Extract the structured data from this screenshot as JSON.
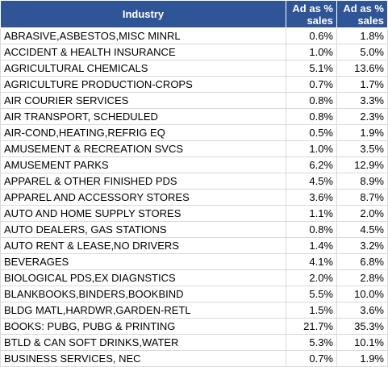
{
  "header": {
    "industry": "Industry",
    "col_a": "Ad as % sales",
    "col_b": "Ad as % sales"
  },
  "rows": [
    {
      "name": "ABRASIVE,ASBESTOS,MISC MINRL",
      "a": "0.6%",
      "b": "1.8%"
    },
    {
      "name": "ACCIDENT & HEALTH INSURANCE",
      "a": "1.0%",
      "b": "5.0%"
    },
    {
      "name": "AGRICULTURAL CHEMICALS",
      "a": "5.1%",
      "b": "13.6%"
    },
    {
      "name": "AGRICULTURE PRODUCTION-CROPS",
      "a": "0.7%",
      "b": "1.7%"
    },
    {
      "name": "AIR COURIER SERVICES",
      "a": "0.8%",
      "b": "3.3%"
    },
    {
      "name": "AIR TRANSPORT, SCHEDULED",
      "a": "0.8%",
      "b": "2.3%"
    },
    {
      "name": "AIR-COND,HEATING,REFRIG EQ",
      "a": "0.5%",
      "b": "1.9%"
    },
    {
      "name": "AMUSEMENT & RECREATION SVCS",
      "a": "1.0%",
      "b": "3.5%"
    },
    {
      "name": "AMUSEMENT PARKS",
      "a": "6.2%",
      "b": "12.9%"
    },
    {
      "name": "APPAREL & OTHER FINISHED PDS",
      "a": "4.5%",
      "b": "8.9%"
    },
    {
      "name": "APPAREL AND ACCESSORY STORES",
      "a": "3.6%",
      "b": "8.7%"
    },
    {
      "name": "AUTO AND HOME SUPPLY STORES",
      "a": "1.1%",
      "b": "2.0%"
    },
    {
      "name": "AUTO DEALERS, GAS STATIONS",
      "a": "0.8%",
      "b": "4.5%"
    },
    {
      "name": "AUTO RENT & LEASE,NO DRIVERS",
      "a": "1.4%",
      "b": "3.2%"
    },
    {
      "name": "BEVERAGES",
      "a": "4.1%",
      "b": "6.8%"
    },
    {
      "name": "BIOLOGICAL PDS,EX DIAGNSTICS",
      "a": "2.0%",
      "b": "2.8%"
    },
    {
      "name": "BLANKBOOKS,BINDERS,BOOKBIND",
      "a": "5.5%",
      "b": "10.0%"
    },
    {
      "name": "BLDG MATL,HARDWR,GARDEN-RETL",
      "a": "1.5%",
      "b": "3.6%"
    },
    {
      "name": "BOOKS: PUBG, PUBG & PRINTING",
      "a": "21.7%",
      "b": "35.3%"
    },
    {
      "name": "BTLD & CAN SOFT DRINKS,WATER",
      "a": "5.3%",
      "b": "10.1%"
    },
    {
      "name": "BUSINESS SERVICES, NEC",
      "a": "0.7%",
      "b": "1.9%"
    }
  ]
}
